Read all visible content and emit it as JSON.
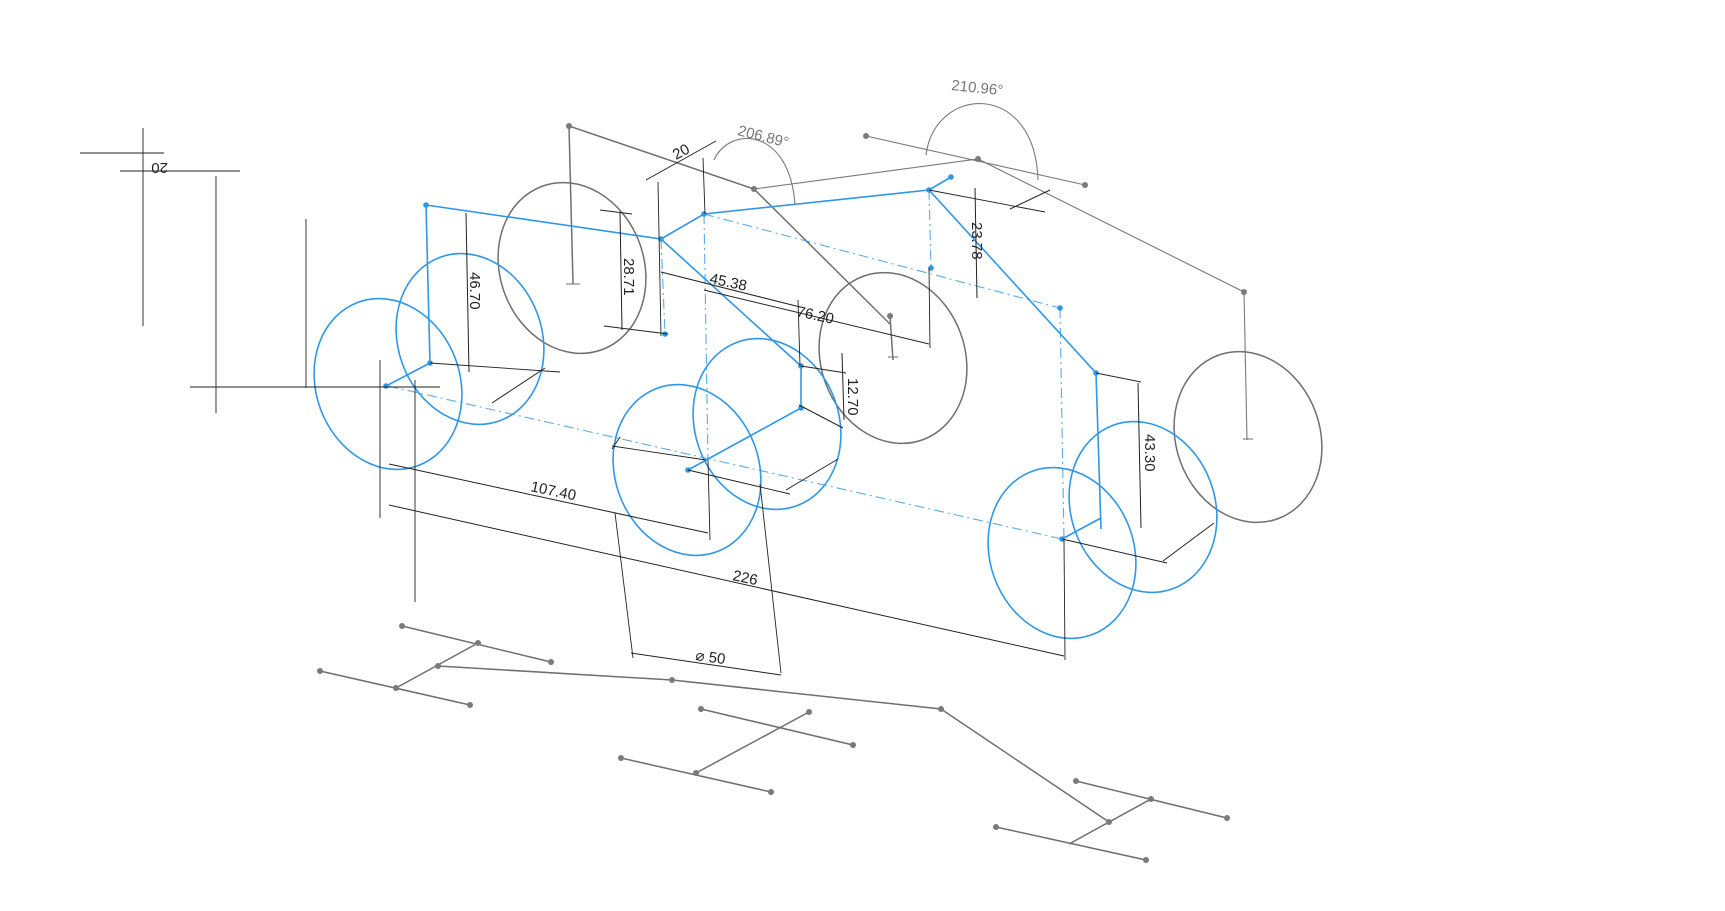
{
  "dimensions": {
    "d20_top": "20",
    "d20_angled": "20",
    "angle_206": "206.89°",
    "angle_210": "210.96°",
    "d46_70": "46.70",
    "d28_71": "28.71",
    "d45_38": "45.38",
    "d76_20": "76.20",
    "d23_78": "23.78",
    "d12_70": "12.70",
    "d43_30": "43.30",
    "d107_40": "107.40",
    "d226": "226",
    "diameter_50": "⌀ 50"
  },
  "colors": {
    "active_sketch": "#2f97e6",
    "inactive_sketch": "#6f6f6f",
    "dimension": "#222222"
  }
}
